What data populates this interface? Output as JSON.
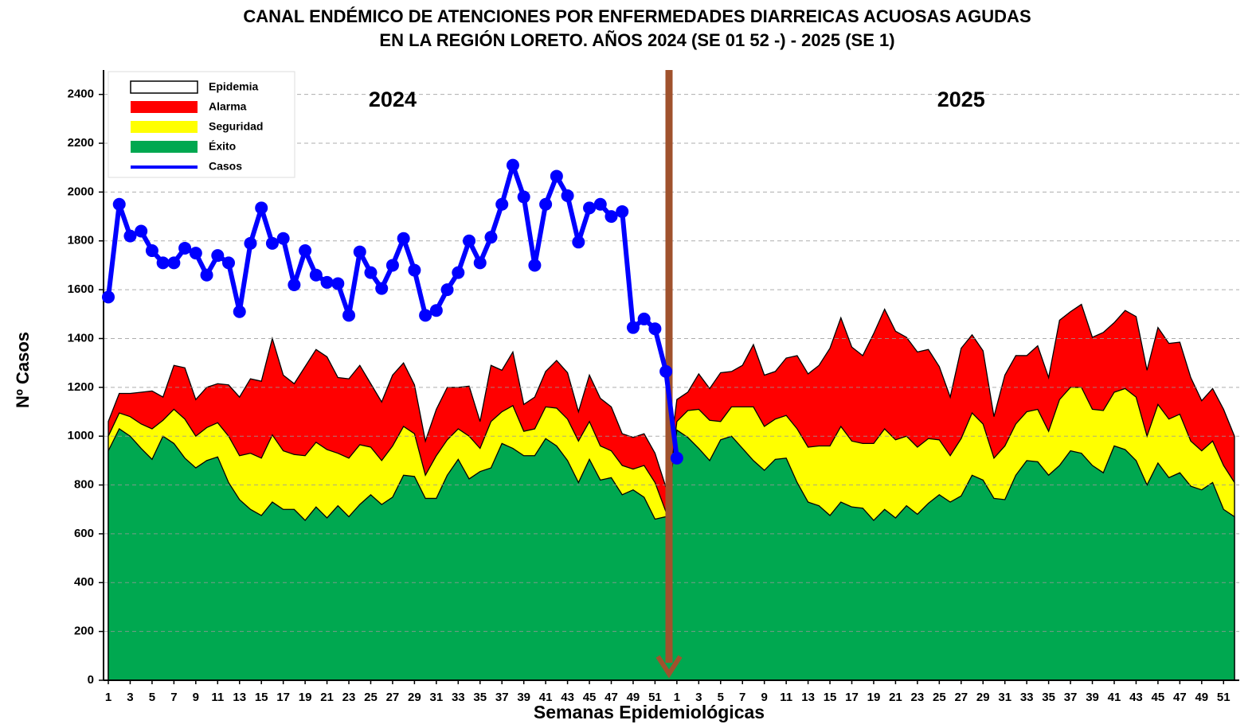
{
  "chart_data": {
    "type": "area",
    "title": [
      "CANAL ENDÉMICO DE ATENCIONES POR ENFERMEDADES DIARREICAS ACUOSAS AGUDAS",
      "EN LA REGIÓN LORETO.  AÑOS 2024 (SE 01 52 -) - 2025 (SE 1)"
    ],
    "x_label": "Semanas Epidemiológicas",
    "y_label": "Nº Casos",
    "annotations": [
      "2024",
      "2025"
    ],
    "categories": [
      1,
      null,
      3,
      null,
      5,
      null,
      7,
      null,
      9,
      null,
      11,
      null,
      13,
      null,
      15,
      null,
      17,
      null,
      19,
      null,
      21,
      null,
      23,
      null,
      25,
      null,
      27,
      null,
      29,
      null,
      31,
      null,
      33,
      null,
      35,
      null,
      37,
      null,
      39,
      null,
      41,
      null,
      43,
      null,
      45,
      null,
      47,
      null,
      49,
      null,
      51,
      null,
      1,
      null,
      3,
      null,
      5,
      null,
      7,
      null,
      9,
      null,
      11,
      null,
      13,
      null,
      15,
      null,
      17,
      null,
      19,
      null,
      21,
      null,
      23,
      null,
      25,
      null,
      27,
      null,
      29,
      null,
      31,
      null,
      33,
      null,
      35,
      null,
      37,
      null,
      39,
      null,
      41,
      null,
      43,
      null,
      45,
      null,
      47,
      null,
      49,
      null,
      51,
      null
    ],
    "ylim": [
      0,
      2500
    ],
    "yticks": [
      0,
      200,
      400,
      600,
      800,
      1000,
      1200,
      1400,
      1600,
      1800,
      2000,
      2200,
      2400
    ],
    "grid": true,
    "legend": "upper left",
    "background_band": {
      "name": "Epidemia",
      "color": "#ffffff"
    },
    "series": [
      {
        "name": "Alarma",
        "color": "#ff0000",
        "type": "area",
        "values": [
          1060,
          1175,
          1175,
          1180,
          1185,
          1160,
          1290,
          1280,
          1150,
          1200,
          1215,
          1210,
          1160,
          1235,
          1225,
          1400,
          1250,
          1215,
          1285,
          1355,
          1325,
          1240,
          1235,
          1290,
          1215,
          1140,
          1250,
          1300,
          1210,
          980,
          1110,
          1200,
          1200,
          1205,
          1060,
          1290,
          1270,
          1345,
          1130,
          1160,
          1265,
          1310,
          1260,
          1100,
          1250,
          1155,
          1120,
          1010,
          995,
          1010,
          930,
          790,
          1150,
          1180,
          1255,
          1195,
          1260,
          1265,
          1290,
          1375,
          1250,
          1265,
          1320,
          1330,
          1255,
          1290,
          1360,
          1485,
          1365,
          1330,
          1420,
          1520,
          1430,
          1405,
          1345,
          1355,
          1285,
          1160,
          1360,
          1415,
          1350,
          1080,
          1250,
          1330,
          1330,
          1370,
          1240,
          1475,
          1510,
          1540,
          1405,
          1425,
          1465,
          1515,
          1490,
          1270,
          1445,
          1380,
          1385,
          1240,
          1145,
          1195,
          1110,
          1000
        ]
      },
      {
        "name": "Seguridad",
        "color": "#ffff00",
        "type": "area",
        "values": [
          1000,
          1095,
          1080,
          1050,
          1030,
          1065,
          1110,
          1070,
          1000,
          1035,
          1055,
          1000,
          920,
          930,
          910,
          1005,
          940,
          925,
          920,
          975,
          945,
          930,
          910,
          965,
          955,
          900,
          960,
          1040,
          1010,
          840,
          920,
          985,
          1030,
          1000,
          950,
          1060,
          1100,
          1125,
          1020,
          1030,
          1120,
          1115,
          1070,
          980,
          1060,
          960,
          940,
          880,
          865,
          880,
          810,
          690,
          1060,
          1105,
          1110,
          1065,
          1060,
          1120,
          1120,
          1120,
          1040,
          1070,
          1085,
          1030,
          955,
          960,
          960,
          1040,
          980,
          970,
          970,
          1030,
          985,
          1000,
          955,
          990,
          985,
          920,
          990,
          1095,
          1050,
          910,
          960,
          1050,
          1100,
          1110,
          1020,
          1150,
          1200,
          1200,
          1110,
          1105,
          1180,
          1195,
          1160,
          1000,
          1130,
          1070,
          1090,
          980,
          940,
          980,
          880,
          810
        ]
      },
      {
        "name": "Éxito",
        "color": "#00a850",
        "type": "area",
        "values": [
          940,
          1030,
          1000,
          950,
          905,
          1000,
          970,
          910,
          870,
          900,
          915,
          810,
          740,
          700,
          675,
          730,
          700,
          700,
          655,
          710,
          665,
          715,
          670,
          720,
          760,
          720,
          750,
          840,
          835,
          745,
          745,
          840,
          905,
          825,
          855,
          870,
          970,
          950,
          920,
          920,
          990,
          960,
          900,
          810,
          905,
          820,
          830,
          760,
          780,
          750,
          660,
          670,
          1025,
          995,
          950,
          900,
          985,
          1000,
          950,
          900,
          860,
          905,
          910,
          810,
          730,
          715,
          675,
          730,
          710,
          705,
          655,
          700,
          665,
          715,
          680,
          725,
          760,
          730,
          755,
          840,
          820,
          745,
          740,
          840,
          900,
          895,
          840,
          880,
          940,
          930,
          880,
          850,
          960,
          945,
          900,
          800,
          890,
          830,
          850,
          795,
          780,
          810,
          700,
          670
        ]
      },
      {
        "name": "Casos",
        "color": "#0000ff",
        "type": "line",
        "values": [
          1570,
          1950,
          1820,
          1840,
          1760,
          1710,
          1710,
          1770,
          1750,
          1660,
          1740,
          1710,
          1510,
          1790,
          1935,
          1790,
          1810,
          1620,
          1760,
          1660,
          1630,
          1625,
          1495,
          1755,
          1670,
          1605,
          1700,
          1810,
          1680,
          1495,
          1515,
          1600,
          1670,
          1800,
          1710,
          1815,
          1950,
          2110,
          1980,
          1700,
          1950,
          2065,
          1985,
          1795,
          1935,
          1950,
          1900,
          1920,
          1445,
          1480,
          1440,
          1265,
          910,
          null,
          null,
          null,
          null,
          null,
          null,
          null,
          null,
          null,
          null,
          null,
          null,
          null,
          null,
          null,
          null,
          null,
          null,
          null,
          null,
          null,
          null,
          null,
          null,
          null,
          null,
          null,
          null,
          null,
          null,
          null,
          null,
          null,
          null,
          null,
          null,
          null,
          null,
          null,
          null,
          null,
          null,
          null,
          null,
          null,
          null,
          null,
          null,
          null,
          null,
          null
        ]
      }
    ]
  }
}
